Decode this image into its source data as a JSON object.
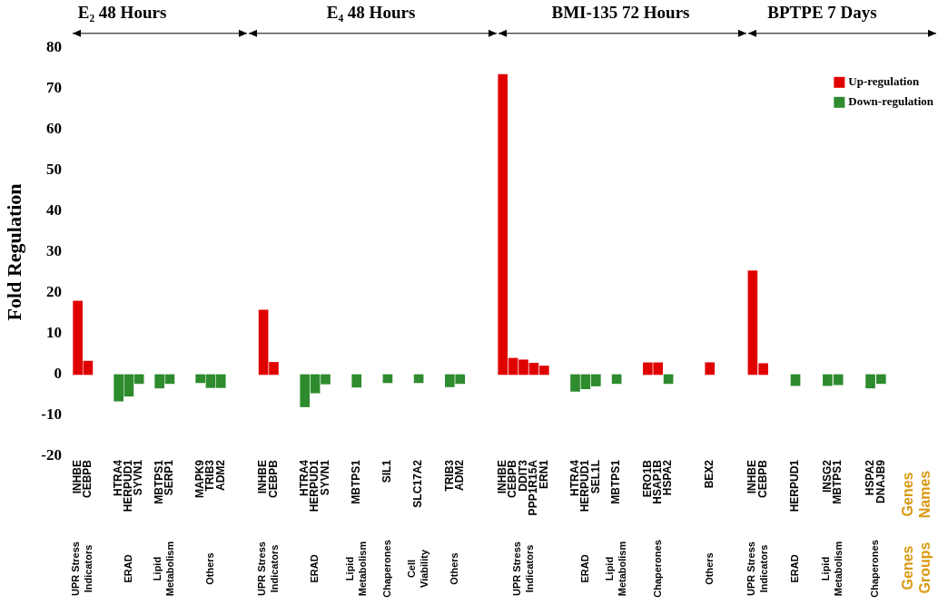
{
  "chart_data": [
    {
      "type": "bar",
      "title": "E₂ 48 Hours",
      "ylabel": "Fold Regulation",
      "categories": [
        "INHBE",
        "CEBPB",
        null,
        null,
        "HTRA4",
        "HERPUD1",
        "SYVN1",
        null,
        "MBTPS1",
        "SERP1",
        null,
        null,
        "MAPK9",
        "TRIB3",
        "ADM2",
        null
      ],
      "ylim": [
        -20,
        80
      ],
      "yticks": [
        -20,
        -10,
        0,
        10,
        20,
        30,
        40,
        50,
        60,
        70,
        80
      ],
      "series": [
        {
          "color": "#e00000",
          "values": [
            18,
            3.3,
            null,
            null,
            null,
            null,
            null,
            null,
            null,
            null,
            null,
            null,
            null,
            null,
            null,
            null
          ]
        },
        {
          "color": "#2e8b2e",
          "values": [
            null,
            null,
            null,
            null,
            -6.5,
            -5.3,
            -2.2,
            null,
            -3.3,
            -2.2,
            null,
            null,
            -2.0,
            -3.2,
            -3.2,
            null
          ]
        }
      ],
      "annotations": [
        "UPR Stress Indicators",
        "ERAD",
        "Lipid Metabolism",
        "Others"
      ]
    },
    {
      "type": "bar",
      "title": "E₄ 48 Hours",
      "categories": [
        null,
        "INHBE",
        "CEBPB",
        null,
        null,
        "HTRA4",
        "HERPUD1",
        "SYVN1",
        null,
        null,
        "MBTPS1",
        null,
        null,
        "SIL1",
        null,
        null,
        "SLC17A2",
        null,
        null,
        "TRIB3",
        "ADM2",
        null,
        null
      ],
      "ylim": [
        -20,
        80
      ],
      "yticks": [
        -20,
        -10,
        0,
        10,
        20,
        30,
        40,
        50,
        60,
        70,
        80
      ],
      "tick_labels": "x",
      "series": [
        {
          "color": "#e00000",
          "values": [
            null,
            15.8,
            3.0,
            null,
            null,
            null,
            null,
            null,
            null,
            null,
            null,
            null,
            null,
            null,
            null,
            null,
            null,
            null,
            null,
            null,
            null,
            null,
            null
          ]
        },
        {
          "color": "#2e8b2e",
          "values": [
            null,
            null,
            null,
            null,
            null,
            -7.9,
            -4.5,
            -2.3,
            null,
            null,
            -3.1,
            null,
            null,
            -2.0,
            null,
            null,
            -2.0,
            null,
            null,
            -3.0,
            -2.2,
            null,
            null
          ]
        }
      ],
      "annotations": [
        "UPR Stress Indicators",
        "ERAD",
        "Lipid Metabolism",
        "Chaperones",
        "Cell Viability",
        "Others"
      ]
    },
    {
      "type": "bar",
      "title": "BMI-135 72 Hours",
      "categories": [
        "INHBE",
        "CEBPB",
        "DDIT3",
        "PPP1R15A",
        "ERN1",
        null,
        null,
        "HTRA4",
        "HERPUD1",
        "SEL1L",
        null,
        "MBTPS1",
        null,
        null,
        "ERO1B",
        "HSAP1B",
        "HSPA2",
        null,
        null,
        null,
        "BEX2",
        null,
        null
      ],
      "ylim": [
        -20,
        80
      ],
      "yticks": [
        -20,
        -10,
        0,
        10,
        20,
        30,
        40,
        50,
        60,
        70,
        80
      ],
      "tick_labels": "x",
      "series": [
        {
          "color": "#e00000",
          "values": [
            73.5,
            4.0,
            3.6,
            2.8,
            2.1,
            null,
            null,
            null,
            null,
            null,
            null,
            null,
            null,
            null,
            2.9,
            2.9,
            null,
            null,
            null,
            null,
            2.9,
            null,
            null
          ]
        },
        {
          "color": "#2e8b2e",
          "values": [
            null,
            null,
            null,
            null,
            null,
            null,
            null,
            -4.1,
            -3.5,
            -2.8,
            null,
            -2.2,
            null,
            null,
            null,
            null,
            -2.2,
            null,
            null,
            null,
            null,
            null,
            null
          ]
        }
      ],
      "annotations": [
        "UPR Stress Indicators",
        "ERAD",
        "Lipid Metabolism",
        "Chaperones",
        "Others"
      ]
    },
    {
      "type": "bar",
      "title": "BPTPE 7 Days",
      "categories": [
        "INHBE",
        "CEBPB",
        null,
        null,
        "HERPUD1",
        null,
        null,
        "INSG2",
        "MBTPS1",
        null,
        null,
        "HSPA2",
        "DNAJB9",
        null
      ],
      "ylim": [
        -20,
        80
      ],
      "yticks": [
        -20,
        -10,
        0,
        10,
        20,
        30,
        40,
        50,
        60,
        70,
        80
      ],
      "tick_labels": "x",
      "series": [
        {
          "name": "Up-regulation",
          "color": "#e00000",
          "values": [
            25.4,
            2.7,
            null,
            null,
            null,
            null,
            null,
            null,
            null,
            null,
            null,
            null,
            null,
            null
          ]
        },
        {
          "name": "Down-regulation",
          "color": "#2e8b2e",
          "values": [
            null,
            null,
            null,
            null,
            -2.7,
            null,
            null,
            -2.7,
            -2.5,
            null,
            null,
            -3.3,
            -2.2,
            null
          ]
        }
      ],
      "legend": "top right",
      "annotations": [
        "UPR Stress Indicators",
        "ERAD",
        "Lipid Metabolism",
        "Chaperones",
        "Genes Names",
        "Genes Groups"
      ]
    }
  ]
}
